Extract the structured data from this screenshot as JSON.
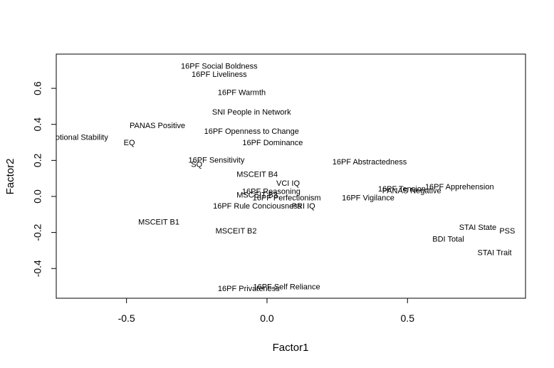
{
  "chart_data": {
    "type": "scatter",
    "title": "",
    "xlabel": "Factor1",
    "ylabel": "Factor2",
    "xlim": [
      -0.75,
      0.92
    ],
    "ylim": [
      -0.565,
      0.79
    ],
    "x_ticks": [
      -0.5,
      0.0,
      0.5
    ],
    "x_tick_labels": [
      "-0.5",
      "0.0",
      "0.5"
    ],
    "y_ticks": [
      -0.4,
      -0.2,
      0.0,
      0.2,
      0.4,
      0.6
    ],
    "y_tick_labels": [
      "-0.4",
      "-0.2",
      "0.0",
      "0.2",
      "0.4",
      "0.6"
    ],
    "grid": false,
    "points": [
      {
        "label": "16PF Social Boldness",
        "x": -0.17,
        "y": 0.72
      },
      {
        "label": "16PF Liveliness",
        "x": -0.17,
        "y": 0.675
      },
      {
        "label": "16PF Warmth",
        "x": -0.09,
        "y": 0.575
      },
      {
        "label": "SNI People in Network",
        "x": -0.055,
        "y": 0.465
      },
      {
        "label": "16PF Openness to Change",
        "x": -0.055,
        "y": 0.36
      },
      {
        "label": "PANAS Positive",
        "x": -0.39,
        "y": 0.39
      },
      {
        "label": "Emotional Stability",
        "x": -0.68,
        "y": 0.325
      },
      {
        "label": "EQ",
        "x": -0.49,
        "y": 0.295
      },
      {
        "label": "16PF Dominance",
        "x": 0.02,
        "y": 0.295
      },
      {
        "label": "16PF Sensitivity",
        "x": -0.18,
        "y": 0.2
      },
      {
        "label": "SQ",
        "x": -0.25,
        "y": 0.175
      },
      {
        "label": "16PF Abstractedness",
        "x": 0.365,
        "y": 0.19
      },
      {
        "label": "MSCEIT B4",
        "x": -0.035,
        "y": 0.12
      },
      {
        "label": "VCI IQ",
        "x": 0.075,
        "y": 0.07
      },
      {
        "label": "16PF Reasoning",
        "x": 0.015,
        "y": 0.025
      },
      {
        "label": "MSCEIT B3",
        "x": -0.035,
        "y": 0.005
      },
      {
        "label": "16PF Perfectionism",
        "x": 0.07,
        "y": -0.01
      },
      {
        "label": "16PF Vigilance",
        "x": 0.36,
        "y": -0.01
      },
      {
        "label": "16PF Tension",
        "x": 0.48,
        "y": 0.04
      },
      {
        "label": "PANAS Negative",
        "x": 0.515,
        "y": 0.03
      },
      {
        "label": "16PF Apprehension",
        "x": 0.685,
        "y": 0.05
      },
      {
        "label": "16PF Rule Conciousness",
        "x": -0.035,
        "y": -0.055
      },
      {
        "label": "PRI IQ",
        "x": 0.13,
        "y": -0.055
      },
      {
        "label": "MSCEIT B1",
        "x": -0.385,
        "y": -0.145
      },
      {
        "label": "MSCEIT B2",
        "x": -0.11,
        "y": -0.195
      },
      {
        "label": "STAI State",
        "x": 0.75,
        "y": -0.175
      },
      {
        "label": "PSS",
        "x": 0.855,
        "y": -0.195
      },
      {
        "label": "BDI Total",
        "x": 0.645,
        "y": -0.24
      },
      {
        "label": "STAI Trait",
        "x": 0.81,
        "y": -0.315
      },
      {
        "label": "16PF Self Reliance",
        "x": 0.07,
        "y": -0.505
      },
      {
        "label": "16PF Privateness",
        "x": -0.065,
        "y": -0.515
      }
    ]
  }
}
